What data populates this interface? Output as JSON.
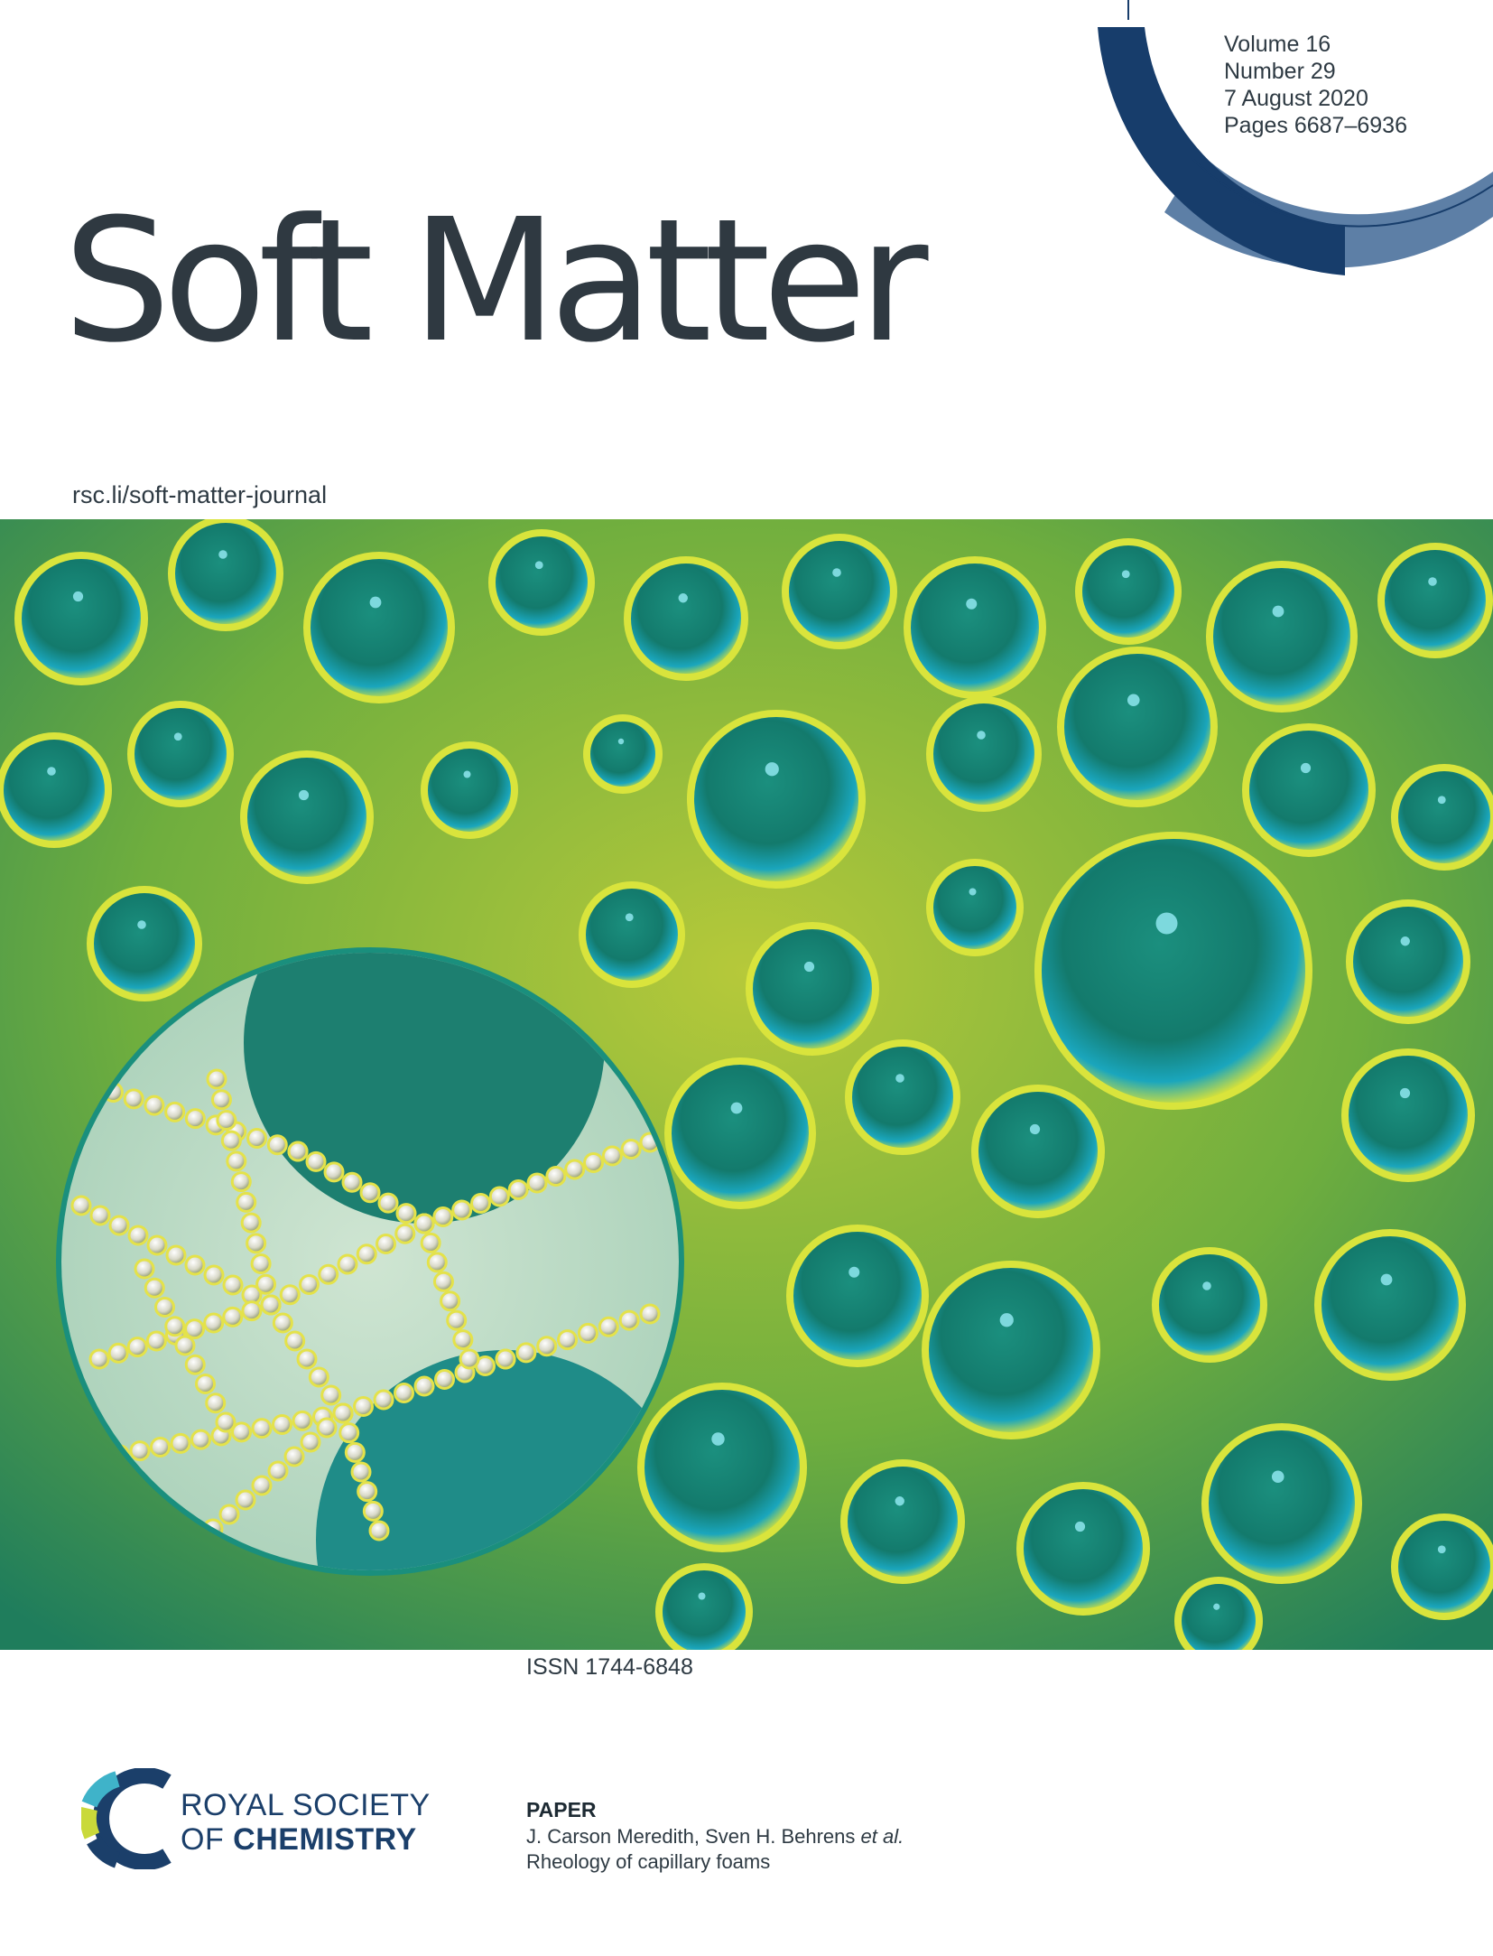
{
  "journal": {
    "title": "Soft Matter",
    "url": "rsc.li/soft-matter-journal"
  },
  "issue": {
    "volume": "Volume 16",
    "number": "Number 29",
    "date": "7 August 2020",
    "pages": "Pages 6687–6936"
  },
  "issn": "ISSN 1744-6848",
  "publisher": {
    "line1": "ROYAL SOCIETY",
    "line2_prefix": "OF ",
    "line2_bold": "CHEMISTRY"
  },
  "paper": {
    "label": "PAPER",
    "authors": "J. Carson Meredith, Sven H. Behrens ",
    "authors_suffix": "et al.",
    "title": "Rheology of capillary foams"
  },
  "colors": {
    "title_text": "#2f3941",
    "arc_dark": "#173d6b",
    "arc_light": "#5d7fa6",
    "foam_green": "#1b8a6b",
    "foam_yellow": "#c9d93a",
    "bubble_teal": "#1aa3b5"
  },
  "icons": {
    "rsc_logo": "rsc-logo-mark",
    "issue_arc": "decorative-arc"
  }
}
